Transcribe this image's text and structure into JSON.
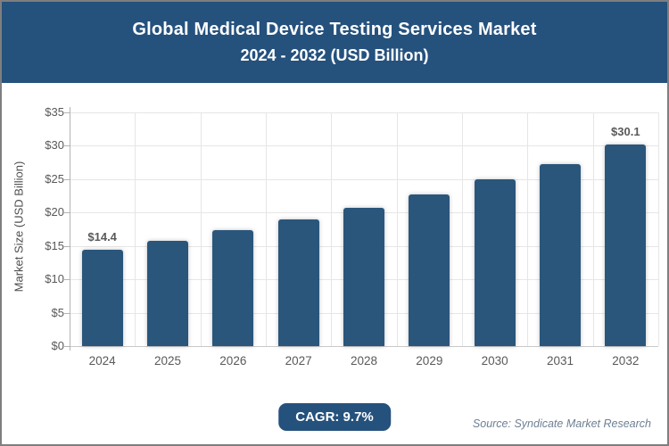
{
  "header": {
    "title": "Global Medical Device Testing Services Market",
    "subtitle": "2024 - 2032 (USD Billion)"
  },
  "chart_data": {
    "type": "bar",
    "title": "Global Medical Device Testing Services Market",
    "subtitle": "2024 - 2032 (USD Billion)",
    "categories": [
      "2024",
      "2025",
      "2026",
      "2027",
      "2028",
      "2029",
      "2030",
      "2031",
      "2032"
    ],
    "values": [
      14.4,
      15.8,
      17.3,
      18.9,
      20.7,
      22.7,
      24.9,
      27.2,
      30.1
    ],
    "point_labels": [
      {
        "index": 0,
        "text": "$14.4"
      },
      {
        "index": 8,
        "text": "$30.1"
      }
    ],
    "xlabel": "",
    "ylabel": "Market Size (USD Billion)",
    "ylim": [
      0,
      35
    ],
    "ytick_step": 5,
    "ytick_labels": [
      "$0",
      "$5",
      "$10",
      "$15",
      "$20",
      "$25",
      "$30",
      "$35"
    ],
    "grid": true,
    "legend": false
  },
  "footer": {
    "cagr_badge": "CAGR: 9.7%",
    "source": "Source: Syndicate Market Research"
  },
  "colors": {
    "header_bg": "#25517d",
    "badge_bg": "#25517d",
    "bar": "#2a567c",
    "axis_text": "#595959",
    "grid_line": "#e6e6e6",
    "value_label": "#595959",
    "source_text": "#6e8093"
  }
}
